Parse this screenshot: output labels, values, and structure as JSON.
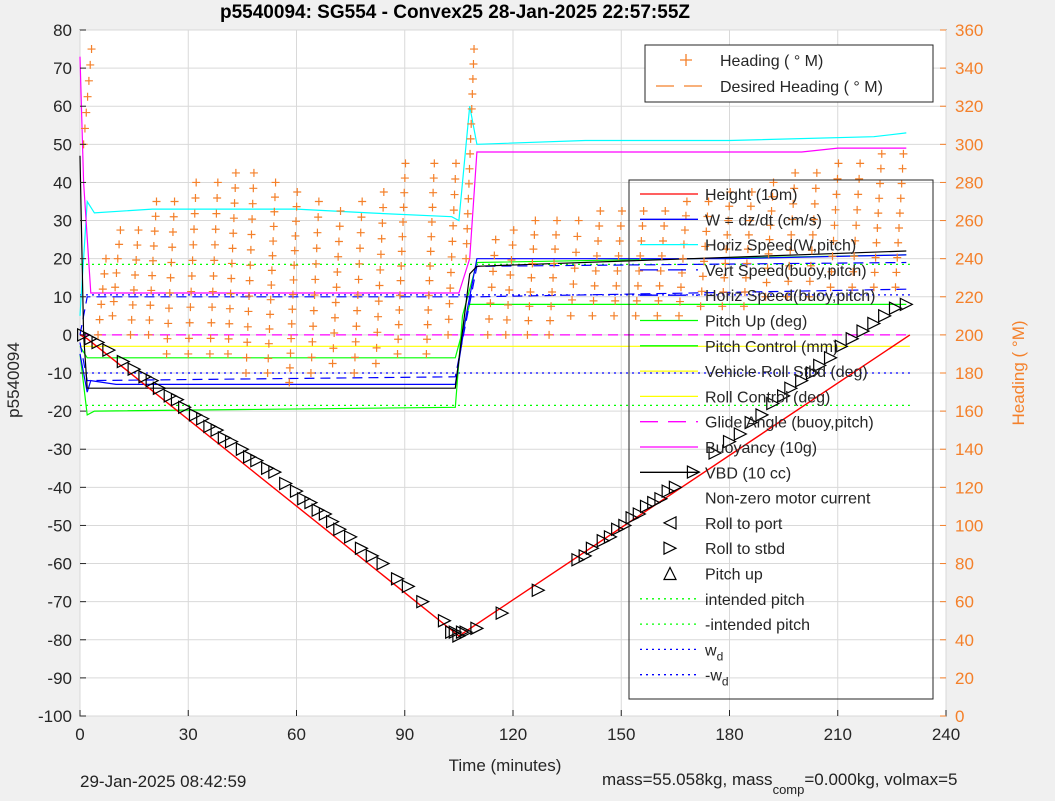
{
  "title": "p5540094: SG554 - Convex25 28-Jan-2025 22:57:55Z",
  "footer": {
    "date": "29-Jan-2025 08:42:59",
    "mass_a": "mass=55.058kg, mass",
    "mass_sub": "comp",
    "mass_b": "=0.000kg, volmax=5"
  },
  "chart_data": {
    "type": "line",
    "title": "p5540094: SG554 - Convex25 28-Jan-2025 22:57:55Z",
    "xlabel": "Time (minutes)",
    "ylabel": "p5540094",
    "y2label": "Heading ( °M)",
    "xlim": [
      0,
      240
    ],
    "ylim": [
      -100,
      80
    ],
    "y2lim": [
      0,
      360
    ],
    "xticks": [
      "0",
      "30",
      "60",
      "90",
      "120",
      "150",
      "180",
      "210",
      "240"
    ],
    "yticks": [
      "-100",
      "-90",
      "-80",
      "-70",
      "-60",
      "-50",
      "-40",
      "-30",
      "-20",
      "-10",
      "0",
      "10",
      "20",
      "30",
      "40",
      "50",
      "60",
      "70",
      "80"
    ],
    "y2ticks": [
      "0",
      "20",
      "40",
      "60",
      "80",
      "100",
      "120",
      "140",
      "160",
      "180",
      "200",
      "220",
      "240",
      "260",
      "280",
      "300",
      "320",
      "340",
      "360"
    ],
    "grid": true,
    "legend_right_axis": {
      "placement": "top-right",
      "entries": [
        "Heading (  ° M)",
        "Desired Heading (    ° M)"
      ]
    },
    "legend_main": {
      "placement": "right",
      "entries": [
        {
          "label": "Height (10m)",
          "color": "#ff0000",
          "style": "solid"
        },
        {
          "label": "W = dz/dt (cm/s)",
          "color": "#0000ff",
          "style": "solid"
        },
        {
          "label": "Horiz Speed(W,pitch)",
          "color": "#00ffff",
          "style": "solid"
        },
        {
          "label": "Vert Speed(buoy,pitch)",
          "color": "#0000ff",
          "style": "dashed"
        },
        {
          "label": "Horiz Speed(buoy,pitch)",
          "color": "#0000ff",
          "style": "dashed"
        },
        {
          "label": "Pitch Up (deg)",
          "color": "#00ff00",
          "style": "solid"
        },
        {
          "label": "Pitch Control (mm)",
          "color": "#00ff00",
          "style": "solid"
        },
        {
          "label": "Vehicle Roll Stbd (deg)",
          "color": "#ffff00",
          "style": "solid"
        },
        {
          "label": "Roll Control (deg)",
          "color": "#ffff00",
          "style": "solid"
        },
        {
          "label": "Glide Angle (buoy,pitch)",
          "color": "#ff00ff",
          "style": "dashed"
        },
        {
          "label": "Buoyancy (10g)",
          "color": "#ff00ff",
          "style": "solid"
        },
        {
          "label": "VBD (10 cc)",
          "color": "#000000",
          "style": "solid"
        },
        {
          "label": "Non-zero motor current",
          "color": "#000000",
          "style": "none"
        },
        {
          "label": "Roll to port",
          "color": "#000000",
          "style": "tri-left"
        },
        {
          "label": "Roll to stbd",
          "color": "#000000",
          "style": "tri-right"
        },
        {
          "label": "Pitch up",
          "color": "#000000",
          "style": "tri-up"
        },
        {
          "label": "intended pitch",
          "color": "#00ff00",
          "style": "dotted"
        },
        {
          "label": "-intended pitch",
          "color": "#00ff00",
          "style": "dotted"
        },
        {
          "label": "w",
          "sub": "d",
          "color": "#0000ff",
          "style": "dotted"
        },
        {
          "label": "-w",
          "sub": "d",
          "color": "#0000ff",
          "style": "dotted"
        }
      ]
    },
    "colors": {
      "height": "#ff0000",
      "w": "#0000ff",
      "horiz_w": "#00ffff",
      "pitch": "#00ff00",
      "roll": "#ffff00",
      "glide": "#ff00ff",
      "buoyancy": "#ff00ff",
      "vbd": "#000000",
      "heading": "#f4802a"
    },
    "series": {
      "height": {
        "x": [
          0,
          2,
          105,
          230
        ],
        "y": [
          0,
          -1,
          -79,
          0
        ]
      },
      "w": {
        "x": [
          0,
          2,
          3,
          10,
          40,
          80,
          104,
          107,
          110,
          140,
          180,
          229
        ],
        "y": [
          -5,
          -15,
          -12,
          -13,
          -13,
          -13,
          -13,
          5,
          20,
          20,
          20,
          21
        ]
      },
      "horiz_speed_w": {
        "x": [
          0,
          2,
          4,
          20,
          40,
          60,
          80,
          103,
          105,
          108,
          110,
          140,
          180,
          220,
          229
        ],
        "y": [
          5,
          35,
          32,
          33,
          33,
          33,
          32,
          31,
          30,
          60,
          50,
          51,
          51,
          52,
          53
        ]
      },
      "vert_speed_buoy": {
        "x": [
          0,
          2,
          104,
          110,
          229
        ],
        "y": [
          -2,
          -12,
          -11,
          18,
          19
        ]
      },
      "horiz_speed_buoy": {
        "x": [
          0,
          2,
          104,
          110,
          229
        ],
        "y": [
          0,
          10,
          10,
          10,
          12
        ]
      },
      "pitch_up": {
        "x": [
          0,
          2,
          4,
          104,
          106,
          110,
          229
        ],
        "y": [
          -5,
          -21,
          -20,
          -19,
          5,
          19,
          21
        ]
      },
      "pitch_control": {
        "x": [
          0,
          2,
          104,
          108,
          229
        ],
        "y": [
          -3,
          -6,
          -6,
          8,
          8
        ]
      },
      "roll_control": {
        "x": [
          0,
          230
        ],
        "y": [
          -3,
          -3
        ]
      },
      "glide_angle": {
        "x": [
          0,
          230
        ],
        "y": [
          0,
          0
        ]
      },
      "buoyancy": {
        "x": [
          0,
          1,
          3,
          105,
          108,
          110,
          200,
          210,
          229
        ],
        "y": [
          73,
          40,
          11,
          11,
          20,
          48,
          48,
          49,
          49
        ]
      },
      "vbd": {
        "x": [
          0,
          1,
          2,
          104,
          108,
          110,
          229
        ],
        "y": [
          47,
          0,
          -14,
          -14,
          16,
          18,
          22
        ]
      },
      "intended_pitch": 18.5,
      "neg_intended_pitch": -18.5,
      "w_d": 10.5,
      "neg_w_d": -10
    },
    "pitch_up_markers": {
      "x": [
        1,
        3,
        5,
        8,
        12,
        15,
        18,
        20,
        22,
        25,
        27,
        29,
        32,
        34,
        36,
        38,
        40,
        42,
        45,
        47,
        49,
        52,
        54,
        57,
        60,
        62,
        64,
        66,
        68,
        70,
        72,
        75,
        78,
        81,
        84,
        88,
        91,
        95,
        101,
        103,
        104,
        105,
        106,
        107,
        110,
        117,
        127,
        138,
        140,
        142,
        145,
        147,
        149,
        151,
        153,
        155,
        157,
        159,
        161,
        163,
        165,
        170,
        176,
        180,
        183,
        186,
        189,
        192,
        195,
        197,
        200,
        203,
        205,
        208,
        211,
        214,
        217,
        220,
        223,
        226,
        229
      ],
      "y": [
        0,
        -1,
        -2,
        -4,
        -7,
        -9,
        -11,
        -12,
        -14,
        -16,
        -17,
        -19,
        -21,
        -22,
        -24,
        -25,
        -27,
        -28,
        -30,
        -32,
        -33,
        -35,
        -36,
        -39,
        -41,
        -43,
        -44,
        -46,
        -47,
        -49,
        -51,
        -53,
        -56,
        -58,
        -60,
        -64,
        -66,
        -70,
        -75,
        -78,
        -78,
        -79,
        -78,
        -78,
        -77,
        -73,
        -67,
        -59,
        -58,
        -56,
        -54,
        -53,
        -51,
        -50,
        -48,
        -47,
        -45,
        -44,
        -43,
        -41,
        -40,
        -36,
        -31,
        -28,
        -26,
        -23,
        -21,
        -18,
        -16,
        -14,
        -12,
        -10,
        -8,
        -6,
        -3,
        -1,
        1,
        3,
        5,
        7,
        8
      ]
    },
    "heading": {
      "description": "scattered '+' heading markers read on right axis (deg M), sawtooth sweeps",
      "sweeps": [
        {
          "x": 1,
          "y0": 300,
          "y1": 350
        },
        {
          "x": 5,
          "y0": 200,
          "y1": 240
        },
        {
          "x": 9,
          "y0": 210,
          "y1": 255
        },
        {
          "x": 14,
          "y0": 200,
          "y1": 255
        },
        {
          "x": 19,
          "y0": 200,
          "y1": 270
        },
        {
          "x": 24,
          "y0": 190,
          "y1": 270
        },
        {
          "x": 30,
          "y0": 190,
          "y1": 280
        },
        {
          "x": 36,
          "y0": 190,
          "y1": 280
        },
        {
          "x": 41,
          "y0": 190,
          "y1": 285
        },
        {
          "x": 46,
          "y0": 180,
          "y1": 285
        },
        {
          "x": 52,
          "y0": 180,
          "y1": 280
        },
        {
          "x": 58,
          "y0": 175,
          "y1": 275
        },
        {
          "x": 64,
          "y0": 180,
          "y1": 270
        },
        {
          "x": 70,
          "y0": 185,
          "y1": 265
        },
        {
          "x": 76,
          "y0": 180,
          "y1": 270
        },
        {
          "x": 82,
          "y0": 185,
          "y1": 275
        },
        {
          "x": 88,
          "y0": 190,
          "y1": 290
        },
        {
          "x": 96,
          "y0": 190,
          "y1": 290
        },
        {
          "x": 102,
          "y0": 200,
          "y1": 290
        },
        {
          "x": 107,
          "y0": 240,
          "y1": 350
        },
        {
          "x": 113,
          "y0": 200,
          "y1": 250
        },
        {
          "x": 118,
          "y0": 200,
          "y1": 255
        },
        {
          "x": 124,
          "y0": 200,
          "y1": 260
        },
        {
          "x": 130,
          "y0": 200,
          "y1": 260
        },
        {
          "x": 136,
          "y0": 210,
          "y1": 260
        },
        {
          "x": 142,
          "y0": 210,
          "y1": 265
        },
        {
          "x": 148,
          "y0": 210,
          "y1": 265
        },
        {
          "x": 154,
          "y0": 210,
          "y1": 265
        },
        {
          "x": 160,
          "y0": 210,
          "y1": 265
        },
        {
          "x": 166,
          "y0": 210,
          "y1": 270
        },
        {
          "x": 172,
          "y0": 215,
          "y1": 270
        },
        {
          "x": 178,
          "y0": 215,
          "y1": 275
        },
        {
          "x": 184,
          "y0": 215,
          "y1": 275
        },
        {
          "x": 190,
          "y0": 220,
          "y1": 280
        },
        {
          "x": 196,
          "y0": 220,
          "y1": 285
        },
        {
          "x": 202,
          "y0": 220,
          "y1": 285
        },
        {
          "x": 208,
          "y0": 225,
          "y1": 290
        },
        {
          "x": 214,
          "y0": 225,
          "y1": 290
        },
        {
          "x": 220,
          "y0": 225,
          "y1": 295
        },
        {
          "x": 226,
          "y0": 225,
          "y1": 295
        }
      ]
    }
  }
}
